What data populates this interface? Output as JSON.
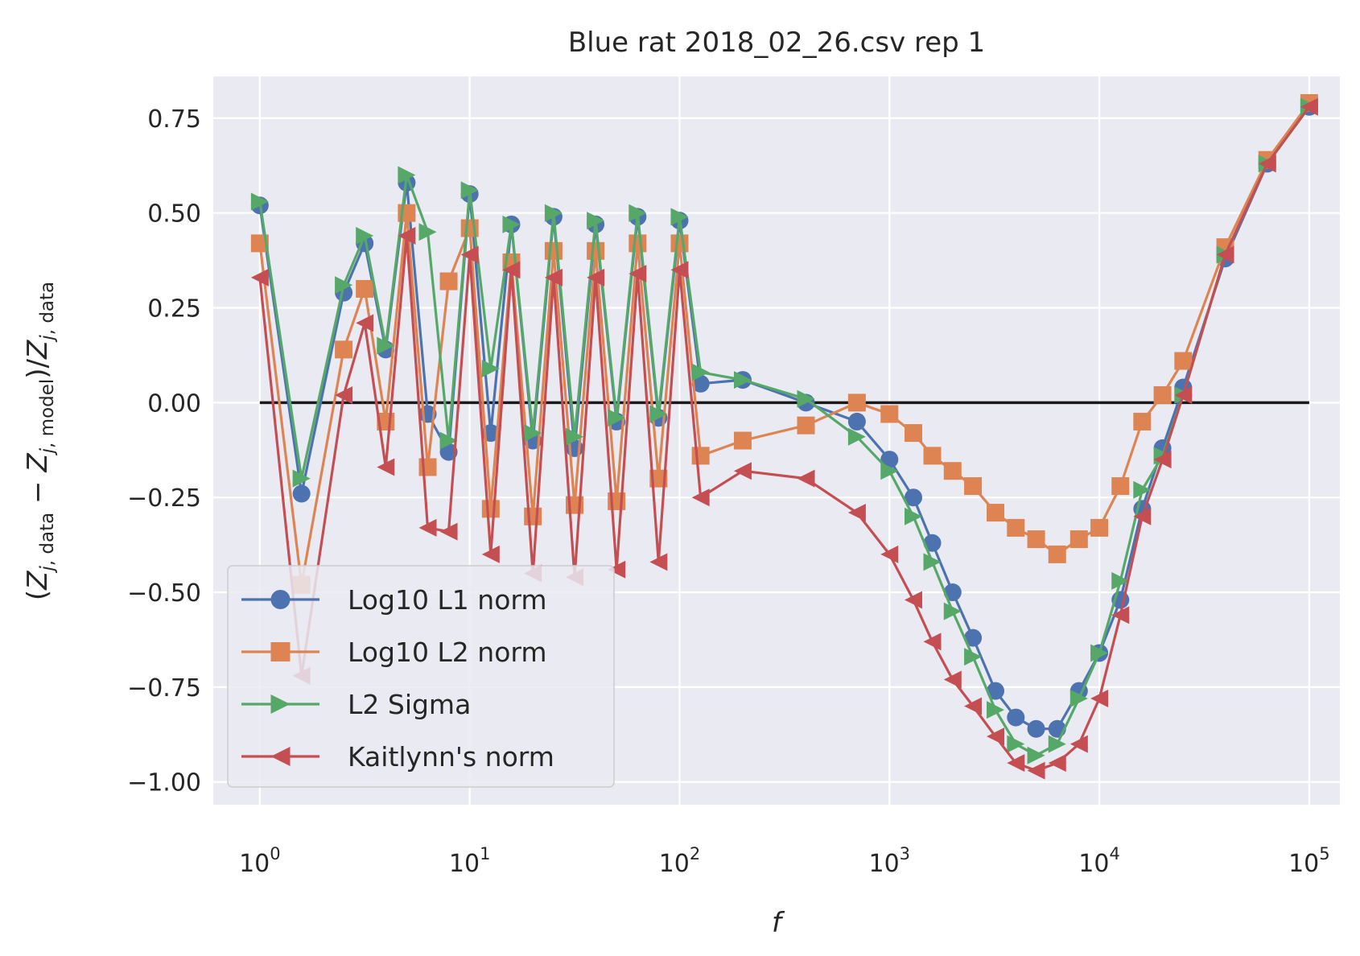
{
  "chart_data": {
    "type": "line",
    "title": "Blue rat 2018_02_26.csv rep 1",
    "xlabel": "f",
    "ylabel": "(Z_j,data − Z_j,model)/Z_j,data",
    "xscale": "log",
    "xlim": [
      0.6,
      140000
    ],
    "ylim": [
      -1.06,
      0.86
    ],
    "x_ticks": [
      {
        "value": 1,
        "exp": "0"
      },
      {
        "value": 10,
        "exp": "1"
      },
      {
        "value": 100,
        "exp": "2"
      },
      {
        "value": 1000,
        "exp": "3"
      },
      {
        "value": 10000,
        "exp": "4"
      },
      {
        "value": 100000,
        "exp": "5"
      }
    ],
    "y_ticks": [
      {
        "value": 0.75,
        "label": "0.75"
      },
      {
        "value": 0.5,
        "label": "0.50"
      },
      {
        "value": 0.25,
        "label": "0.25"
      },
      {
        "value": 0.0,
        "label": "0.00"
      },
      {
        "value": -0.25,
        "label": "−0.25"
      },
      {
        "value": -0.5,
        "label": "−0.50"
      },
      {
        "value": -0.75,
        "label": "−0.75"
      },
      {
        "value": -1.0,
        "label": "−1.00"
      }
    ],
    "grid": true,
    "legend_position": "lower-left",
    "reference_line": {
      "x": [
        1,
        100000
      ],
      "y": [
        0,
        0
      ],
      "color": "#1a1a1a"
    },
    "x": [
      1,
      1.58,
      2.51,
      3.16,
      3.98,
      5.01,
      6.31,
      7.94,
      10,
      12.6,
      15.8,
      20,
      25.1,
      31.6,
      39.8,
      50.1,
      63.1,
      79.4,
      100,
      126,
      200,
      400,
      700,
      1000,
      1300,
      1600,
      2000,
      2500,
      3200,
      4000,
      5000,
      6300,
      8000,
      10000,
      12600,
      16000,
      20000,
      25100,
      39800,
      63100,
      100000
    ],
    "series": [
      {
        "name": "Log10 L1 norm",
        "color": "#4c72b0",
        "marker": "circle",
        "values": [
          0.52,
          -0.24,
          0.29,
          0.42,
          0.14,
          0.58,
          -0.03,
          -0.13,
          0.55,
          -0.08,
          0.47,
          -0.1,
          0.49,
          -0.12,
          0.47,
          -0.05,
          0.49,
          -0.04,
          0.48,
          0.05,
          0.06,
          0.0,
          -0.05,
          -0.15,
          -0.25,
          -0.37,
          -0.5,
          -0.62,
          -0.76,
          -0.83,
          -0.86,
          -0.86,
          -0.76,
          -0.66,
          -0.52,
          -0.28,
          -0.12,
          0.04,
          0.38,
          0.63,
          0.78
        ]
      },
      {
        "name": "Log10 L2 norm",
        "color": "#dd8452",
        "marker": "square",
        "values": [
          0.42,
          -0.48,
          0.14,
          0.3,
          -0.05,
          0.5,
          -0.17,
          0.32,
          0.46,
          -0.28,
          0.37,
          -0.3,
          0.4,
          -0.27,
          0.4,
          -0.26,
          0.42,
          -0.2,
          0.42,
          -0.14,
          -0.1,
          -0.06,
          0.0,
          -0.03,
          -0.08,
          -0.14,
          -0.18,
          -0.22,
          -0.29,
          -0.33,
          -0.36,
          -0.4,
          -0.36,
          -0.33,
          -0.22,
          -0.05,
          0.02,
          0.11,
          0.41,
          0.64,
          0.79
        ]
      },
      {
        "name": "L2 Sigma",
        "color": "#55a868",
        "marker": "tri-right",
        "values": [
          0.53,
          -0.2,
          0.31,
          0.44,
          0.15,
          0.6,
          0.45,
          -0.1,
          0.56,
          0.09,
          0.47,
          -0.08,
          0.5,
          -0.09,
          0.48,
          -0.04,
          0.5,
          -0.03,
          0.49,
          0.08,
          0.06,
          0.01,
          -0.09,
          -0.18,
          -0.3,
          -0.42,
          -0.55,
          -0.67,
          -0.81,
          -0.9,
          -0.93,
          -0.9,
          -0.78,
          -0.66,
          -0.47,
          -0.23,
          -0.14,
          0.02,
          0.39,
          0.63,
          0.78
        ]
      },
      {
        "name": "Kaitlynn's norm",
        "color": "#c44e52",
        "marker": "tri-left",
        "values": [
          0.33,
          -0.72,
          0.02,
          0.21,
          -0.17,
          0.44,
          -0.33,
          -0.34,
          0.39,
          -0.4,
          0.35,
          -0.45,
          0.33,
          -0.46,
          0.33,
          -0.44,
          0.34,
          -0.42,
          0.35,
          -0.25,
          -0.18,
          -0.2,
          -0.29,
          -0.4,
          -0.52,
          -0.63,
          -0.73,
          -0.8,
          -0.88,
          -0.95,
          -0.97,
          -0.95,
          -0.9,
          -0.78,
          -0.56,
          -0.3,
          -0.15,
          0.02,
          0.39,
          0.63,
          0.78
        ]
      }
    ]
  }
}
